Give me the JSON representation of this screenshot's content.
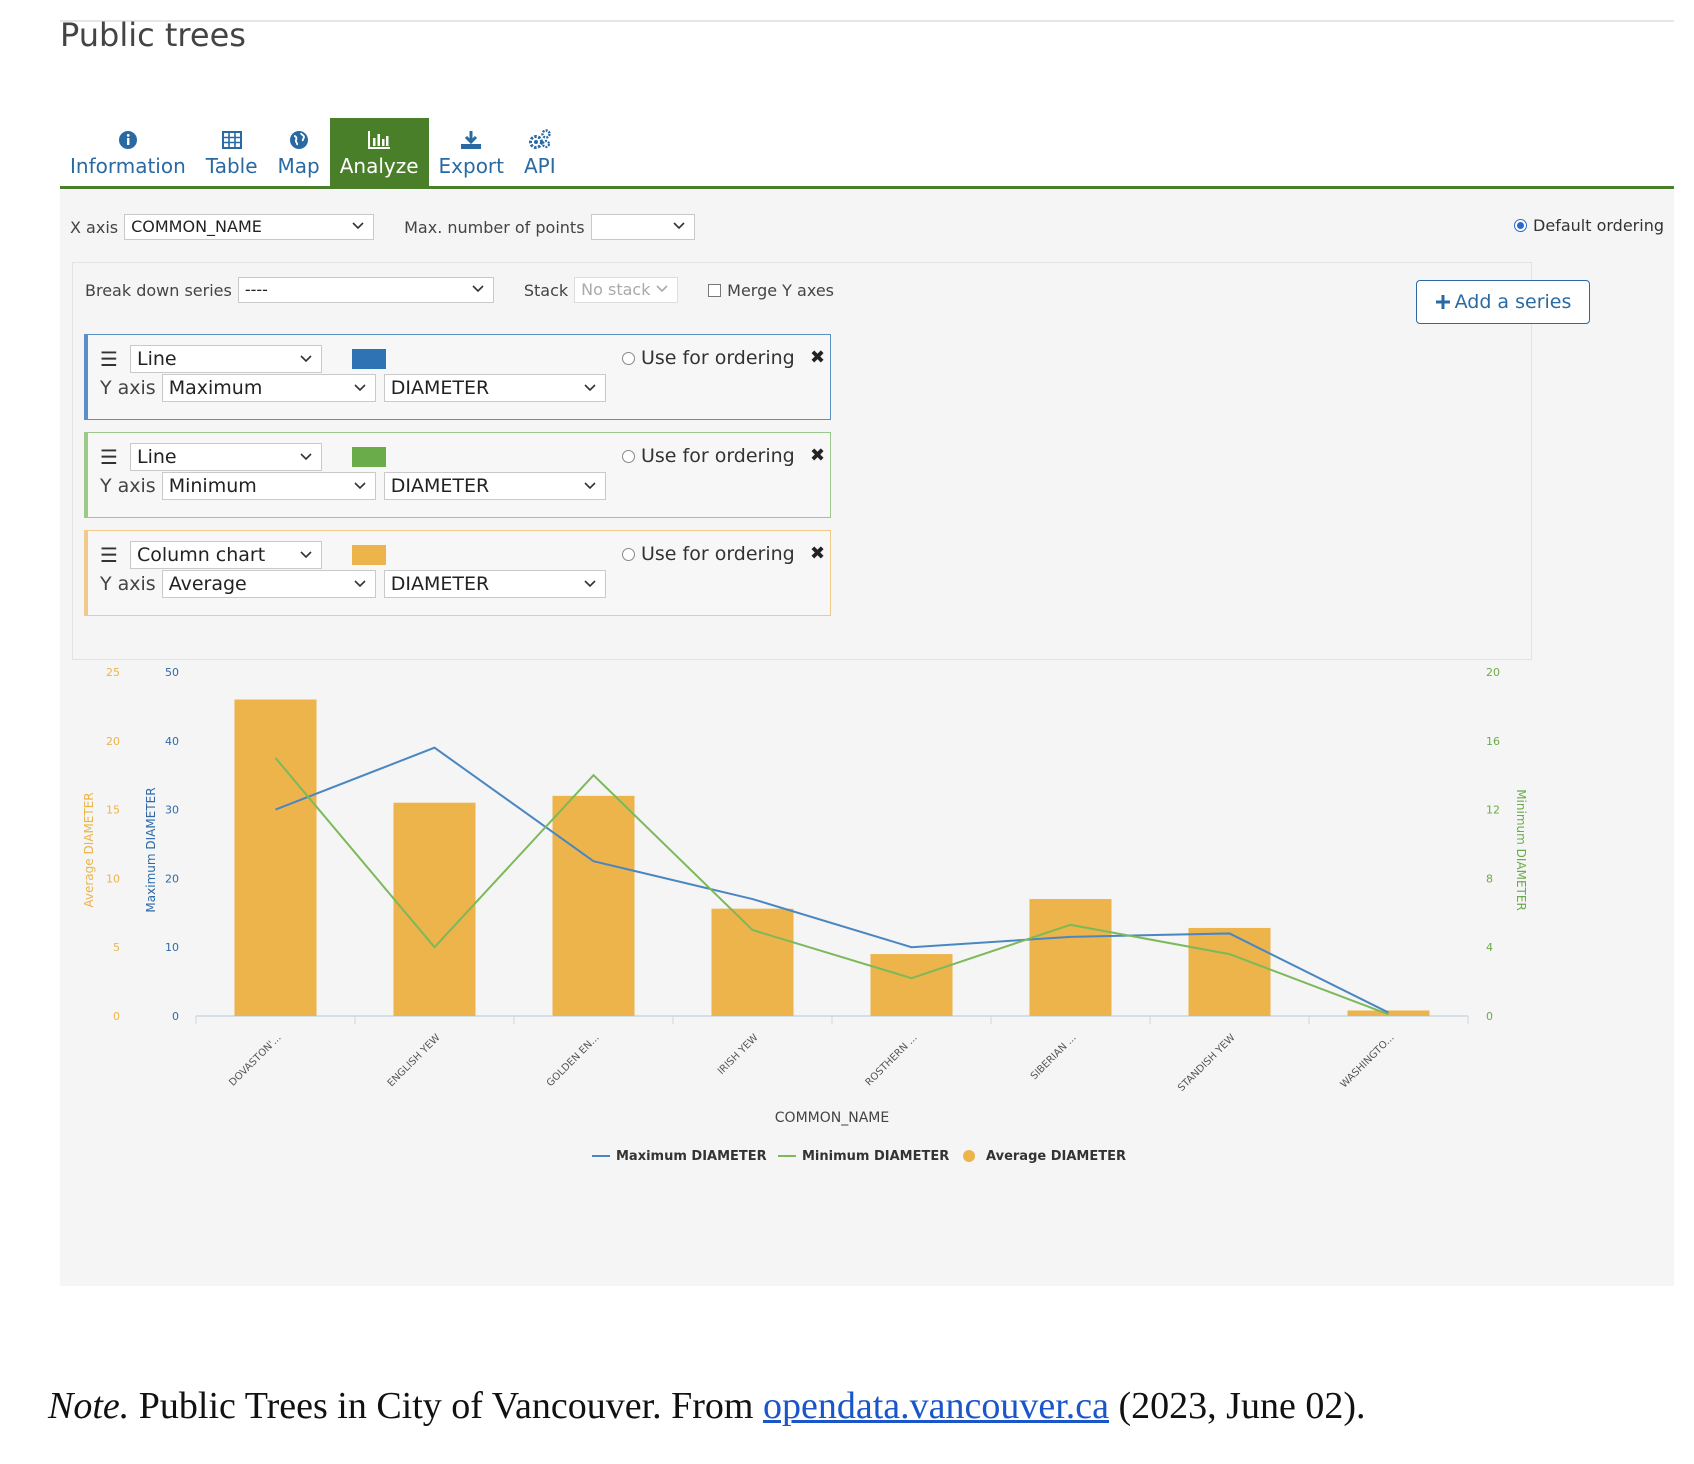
{
  "page": {
    "title": "Public trees"
  },
  "tabs": [
    {
      "label": "Information",
      "icon": "info-icon"
    },
    {
      "label": "Table",
      "icon": "table-icon"
    },
    {
      "label": "Map",
      "icon": "globe-icon"
    },
    {
      "label": "Analyze",
      "icon": "chart-icon",
      "active": true
    },
    {
      "label": "Export",
      "icon": "download-icon"
    },
    {
      "label": "API",
      "icon": "gears-icon"
    }
  ],
  "controls": {
    "x_axis_label": "X axis",
    "x_axis_value": "COMMON_NAME",
    "max_points_label": "Max. number of points",
    "max_points_value": "",
    "default_ordering_label": "Default ordering",
    "break_down_label": "Break down series",
    "break_down_value": "----",
    "stack_label": "Stack",
    "stack_value": "No stack",
    "merge_label": "Merge Y axes",
    "add_series_label": "Add a series"
  },
  "series_config": [
    {
      "type": "Line",
      "color": "#2f73b5",
      "y_axis_label": "Y axis",
      "agg": "Maximum",
      "field": "DIAMETER",
      "use_ordering": "Use for ordering",
      "border": "#5a8fc8"
    },
    {
      "type": "Line",
      "color": "#6aab4a",
      "y_axis_label": "Y axis",
      "agg": "Minimum",
      "field": "DIAMETER",
      "use_ordering": "Use for ordering",
      "border": "#9cc98a"
    },
    {
      "type": "Column chart",
      "color": "#ecb44b",
      "y_axis_label": "Y axis",
      "agg": "Average",
      "field": "DIAMETER",
      "use_ordering": "Use for ordering",
      "border": "#f1c98a"
    }
  ],
  "chart_data": {
    "type": "bar",
    "categories": [
      "DOVASTON'...",
      "ENGLISH YEW",
      "GOLDEN EN...",
      "IRISH YEW",
      "ROSTHERN ...",
      "SIBERIAN ...",
      "STANDISH YEW",
      "WASHINGTO..."
    ],
    "series": [
      {
        "name": "Maximum DIAMETER",
        "type": "line",
        "axis": "left-inner",
        "color": "#4a87c2",
        "values": [
          30,
          39,
          22.5,
          17,
          10,
          11.5,
          12,
          0.5
        ]
      },
      {
        "name": "Minimum DIAMETER",
        "type": "line",
        "axis": "right",
        "color": "#7cb95a",
        "values": [
          15,
          4,
          14,
          5,
          2.2,
          5.3,
          3.6,
          0.1
        ]
      },
      {
        "name": "Average DIAMETER",
        "type": "bar",
        "axis": "left-outer",
        "color": "#ecb44b",
        "values": [
          23,
          15.5,
          16,
          7.8,
          4.5,
          8.5,
          6.4,
          0.4
        ]
      }
    ],
    "axes": {
      "left_outer": {
        "label": "Average DIAMETER",
        "ticks": [
          "0",
          "5",
          "10",
          "15",
          "20",
          "25"
        ],
        "range": [
          0,
          25
        ],
        "color": "#ecb44b"
      },
      "left_inner": {
        "label": "Maximum DIAMETER",
        "ticks": [
          "0",
          "10",
          "20",
          "30",
          "40",
          "50"
        ],
        "range": [
          0,
          50
        ],
        "color": "#2f6aa8"
      },
      "right": {
        "label": "Minimum DIAMETER",
        "ticks": [
          "0",
          "4",
          "8",
          "12",
          "16",
          "20"
        ],
        "range": [
          0,
          20
        ],
        "color": "#6aab4a"
      }
    },
    "xlabel": "COMMON_NAME",
    "legend": [
      "Maximum DIAMETER",
      "Minimum DIAMETER",
      "Average DIAMETER"
    ]
  },
  "note": {
    "prefix": "Note.",
    "text": " Public Trees in City of Vancouver. From ",
    "link": "opendata.vancouver.ca",
    "suffix": " (2023, June 02)."
  }
}
